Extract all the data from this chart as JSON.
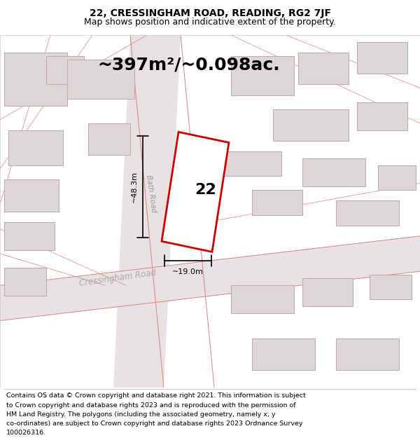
{
  "title_line1": "22, CRESSINGHAM ROAD, READING, RG2 7JF",
  "title_line2": "Map shows position and indicative extent of the property.",
  "area_text": "~397m²/~0.098ac.",
  "property_number": "22",
  "width_label": "~19.0m",
  "height_label": "~48.3m",
  "road_label_1": "Bath Road",
  "road_label_2": "Cressingham Road",
  "footer_lines": [
    "Contains OS data © Crown copyright and database right 2021. This information is subject",
    "to Crown copyright and database rights 2023 and is reproduced with the permission of",
    "HM Land Registry. The polygons (including the associated geometry, namely x, y",
    "co-ordinates) are subject to Crown copyright and database rights 2023 Ordnance Survey",
    "100026316."
  ],
  "map_bg": "#f2efef",
  "property_fill": "#ffffff",
  "property_edge": "#cc0000",
  "building_color": "#ddd8d8",
  "building_edge": "#c8a8a8",
  "road_line_color": "#e08080",
  "road_fill": "#e8e2e2",
  "title_fontsize": 10,
  "subtitle_fontsize": 9,
  "area_fontsize": 18,
  "footer_fontsize": 6.8
}
